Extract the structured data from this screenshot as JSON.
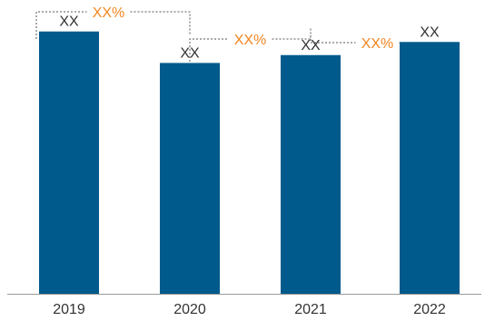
{
  "chart_data": {
    "type": "bar",
    "categories": [
      "2019",
      "2020",
      "2021",
      "2022"
    ],
    "values": [
      100,
      88,
      91,
      96
    ],
    "ylim": [
      0,
      112
    ],
    "data_labels": [
      "XX",
      "XX",
      "XX",
      "XX"
    ],
    "change_annotations": [
      {
        "from": "2019",
        "to": "2020",
        "label": "XX%"
      },
      {
        "from": "2020",
        "to": "2021",
        "label": "XX%"
      },
      {
        "from": "2021",
        "to": "2022",
        "label": "XX%"
      }
    ],
    "grid": false,
    "colors": {
      "bar": "#005a8b",
      "annotation": "#f2851f",
      "text": "#333333"
    }
  }
}
